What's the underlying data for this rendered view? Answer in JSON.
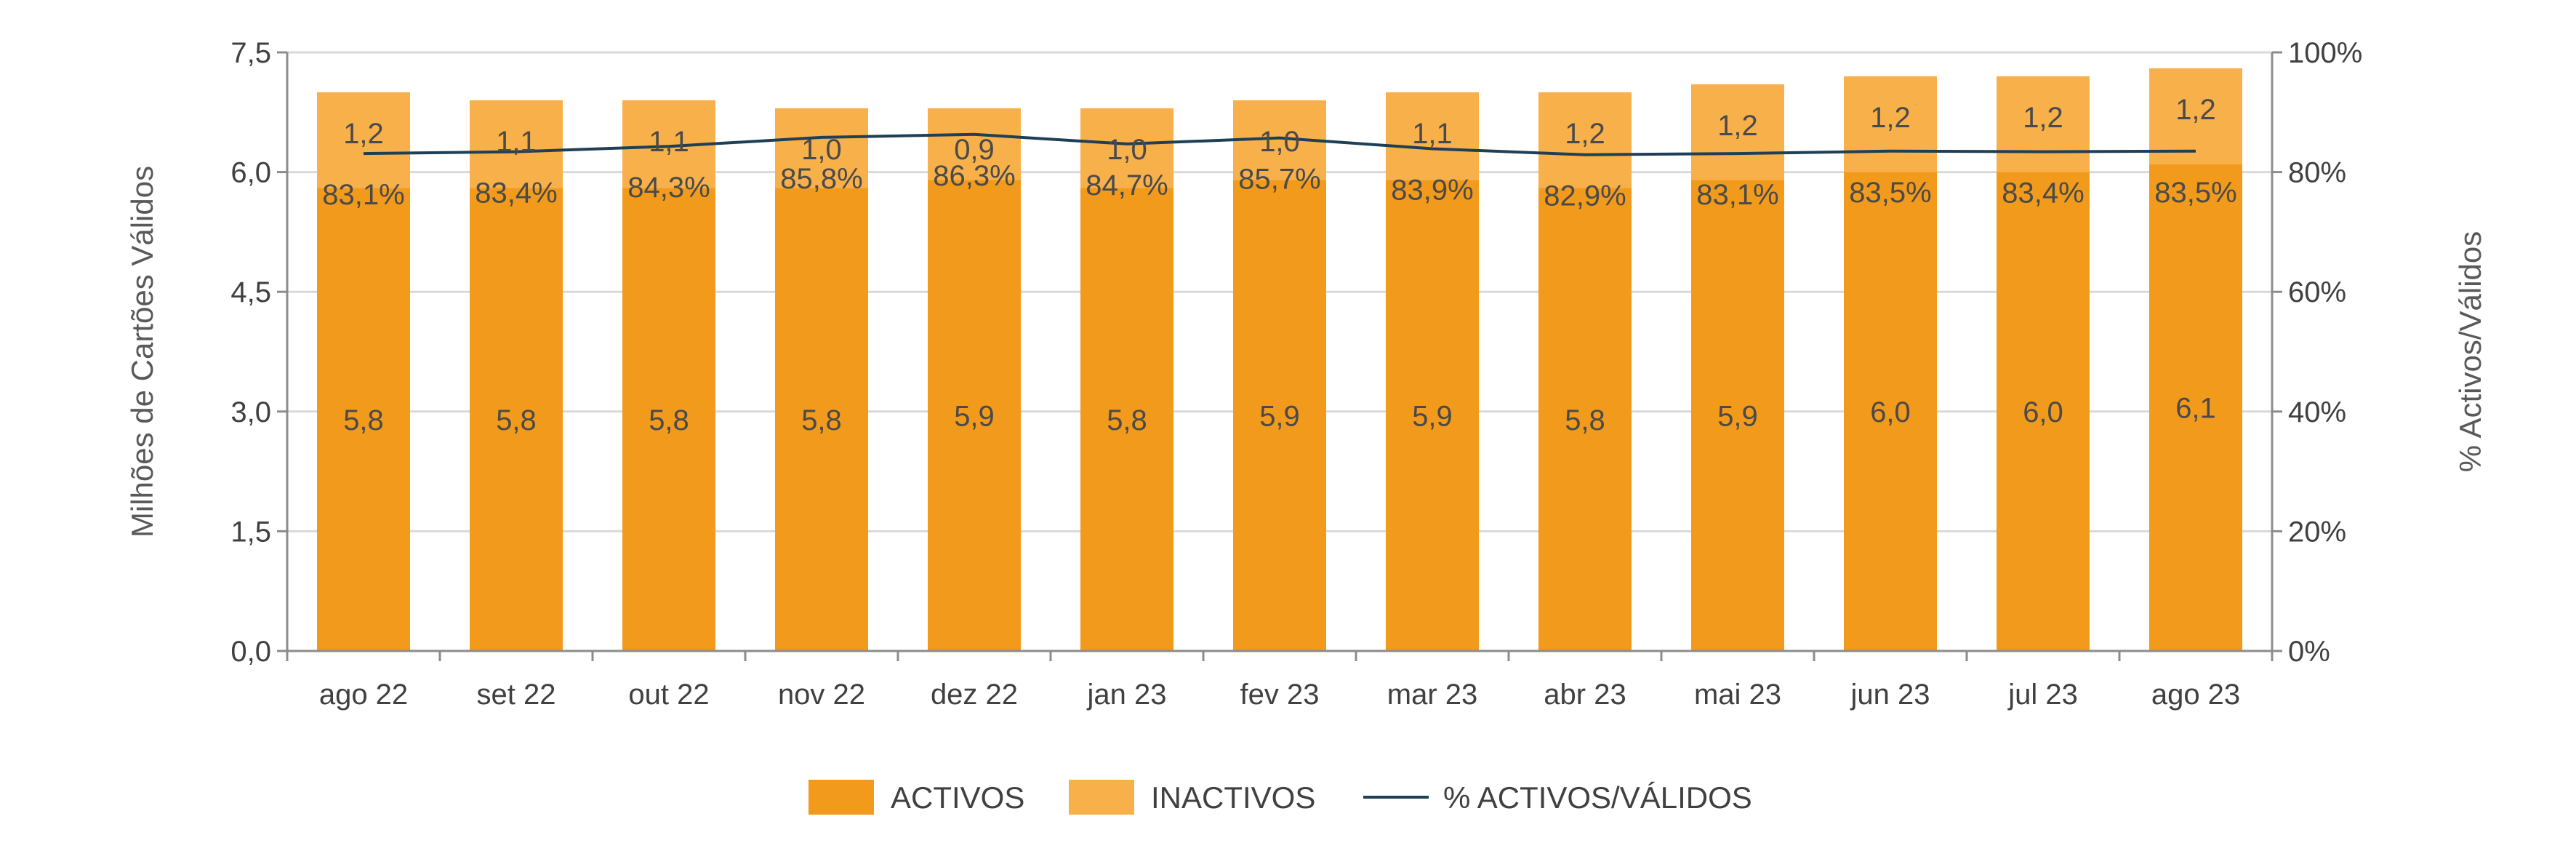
{
  "chart_data": {
    "type": "bar",
    "stacked": true,
    "categories": [
      "ago 22",
      "set 22",
      "out 22",
      "nov 22",
      "dez 22",
      "jan 23",
      "fev 23",
      "mar 23",
      "abr 23",
      "mai 23",
      "jun 23",
      "jul 23",
      "ago 23"
    ],
    "series": [
      {
        "name": "ACTIVOS",
        "type": "bar",
        "color": "#f29a1c",
        "values": [
          5.8,
          5.8,
          5.8,
          5.8,
          5.9,
          5.8,
          5.9,
          5.9,
          5.8,
          5.9,
          6.0,
          6.0,
          6.1
        ],
        "labels": [
          "5,8",
          "5,8",
          "5,8",
          "5,8",
          "5,9",
          "5,8",
          "5,9",
          "5,9",
          "5,8",
          "5,9",
          "6,0",
          "6,0",
          "6,1"
        ]
      },
      {
        "name": "INACTIVOS",
        "type": "bar",
        "color": "#f7b04a",
        "values": [
          1.2,
          1.1,
          1.1,
          1.0,
          0.9,
          1.0,
          1.0,
          1.1,
          1.2,
          1.2,
          1.2,
          1.2,
          1.2
        ],
        "labels": [
          "1,2",
          "1,1",
          "1,1",
          "1,0",
          "0,9",
          "1,0",
          "1,0",
          "1,1",
          "1,2",
          "1,2",
          "1,2",
          "1,2",
          "1,2"
        ]
      },
      {
        "name": "% ACTIVOS/VÁLIDOS",
        "type": "line",
        "axis": "right",
        "color": "#1f3f57",
        "values": [
          83.1,
          83.4,
          84.3,
          85.8,
          86.3,
          84.7,
          85.7,
          83.9,
          82.9,
          83.1,
          83.5,
          83.4,
          83.5
        ],
        "labels": [
          "83,1%",
          "83,4%",
          "84,3%",
          "85,8%",
          "86,3%",
          "84,7%",
          "85,7%",
          "83,9%",
          "82,9%",
          "83,1%",
          "83,5%",
          "83,4%",
          "83,5%"
        ]
      }
    ],
    "ylabel": "Milhões de Cartões Válidos",
    "ylabel_right": "% Activos/Válidos",
    "ylim": [
      0,
      7.5
    ],
    "ylim_right": [
      0,
      100
    ],
    "yticks": [
      "0,0",
      "1,5",
      "3,0",
      "4,5",
      "6,0",
      "7,5"
    ],
    "yticks_right": [
      "0%",
      "20%",
      "40%",
      "60%",
      "80%",
      "100%"
    ],
    "grid": true,
    "legend_position": "bottom"
  }
}
